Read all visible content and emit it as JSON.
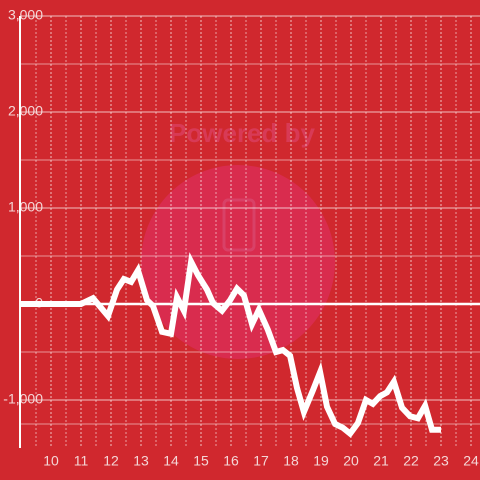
{
  "chart_data": {
    "type": "line",
    "watermark": "Powered by",
    "background": "#d0282e",
    "x": [
      9,
      11,
      11.4,
      11.9,
      12.2,
      12.43,
      12.67,
      12.9,
      13.2,
      13.4,
      13.7,
      14.0,
      14.2,
      14.43,
      14.67,
      14.9,
      15.2,
      15.4,
      15.7,
      15.97,
      16.2,
      16.43,
      16.7,
      16.93,
      17.23,
      17.5,
      17.73,
      17.97,
      18.2,
      18.43,
      18.73,
      18.97,
      19.2,
      19.47,
      19.73,
      19.97,
      20.23,
      20.5,
      20.73,
      20.97,
      21.2,
      21.43,
      21.7,
      21.97,
      22.23,
      22.47,
      22.7,
      23.0
    ],
    "series": [
      {
        "color": "#ffffff",
        "values": [
          0,
          0,
          60,
          -125,
          150,
          260,
          230,
          350,
          40,
          -20,
          -290,
          -310,
          70,
          -70,
          440,
          300,
          150,
          10,
          -70,
          40,
          160,
          90,
          -210,
          -60,
          -270,
          -500,
          -480,
          -540,
          -875,
          -1125,
          -900,
          -710,
          -1070,
          -1250,
          -1290,
          -1350,
          -1240,
          -1000,
          -1040,
          -960,
          -920,
          -810,
          -1080,
          -1170,
          -1190,
          -1060,
          -1310,
          -1310
        ]
      }
    ],
    "xlim": [
      9,
      24.3
    ],
    "xticks": [
      10,
      11,
      12,
      13,
      14,
      15,
      16,
      17,
      18,
      19,
      20,
      21,
      22,
      23,
      24
    ],
    "ylim": [
      -1500,
      3000
    ],
    "yticks": [
      {
        "value": -1000,
        "label": "-1,000"
      },
      0,
      {
        "value": 1000,
        "label": "1,000"
      },
      {
        "value": 2000,
        "label": "2,000"
      },
      {
        "value": 3000,
        "label": "3,000"
      }
    ],
    "grid": true
  }
}
